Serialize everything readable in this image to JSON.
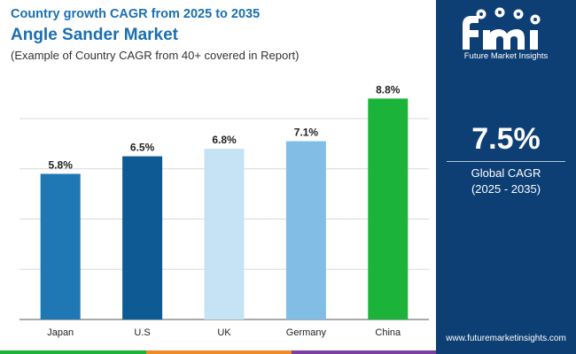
{
  "header": {
    "line1": "Country growth CAGR from 2025 to 2035",
    "title": "Angle Sander Market",
    "subtitle": "(Example of Country CAGR from 40+ covered in Report)"
  },
  "sidebar": {
    "logo_name": "Future Market Insights",
    "cagr_value": "7.5%",
    "cagr_label": "Global CAGR",
    "cagr_period": "(2025 - 2035)",
    "website": "www.futuremarketinsights.com"
  },
  "chart_data": {
    "type": "bar",
    "categories": [
      "Japan",
      "U.S",
      "UK",
      "Germany",
      "China"
    ],
    "values": [
      5.8,
      6.5,
      6.8,
      7.1,
      8.8
    ],
    "value_labels": [
      "5.8%",
      "6.5%",
      "6.8%",
      "7.1%",
      "8.8%"
    ],
    "colors": [
      "#1f78b4",
      "#0d5a94",
      "#c6e3f5",
      "#82bde5",
      "#1bb33a"
    ],
    "ylim": [
      0,
      9.2
    ],
    "grid": true,
    "legend": "none"
  },
  "colors": {
    "brand": "#0d3f74",
    "accent": "#1a6fb0",
    "bottom_bar": [
      "#1bb33a",
      "#f08a24",
      "#7b3fa0",
      "#0d3f74"
    ]
  }
}
